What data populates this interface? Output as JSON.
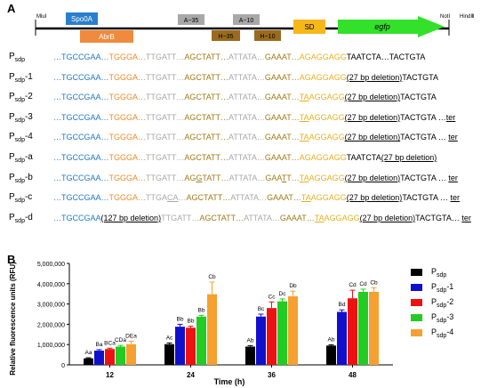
{
  "panel_a_label": "A",
  "panel_b_label": "B",
  "map": {
    "mlu": "MluⅠ",
    "notI": "NotⅠ",
    "hindIII": "HindⅢ",
    "spo0a": "Spo0A",
    "abrb": "AbrB",
    "a35": "A−35",
    "a10": "A−10",
    "h35": "H−35",
    "h10": "H−10",
    "sd": "SD",
    "egfp": "egfp",
    "colors": {
      "spo0a": "#2a7fcc",
      "abrb": "#f08a3c",
      "a_box": "#a8a8a8",
      "h_box": "#9a6b1e",
      "sd": "#f5b71a",
      "egfp": "#33e02a"
    }
  },
  "sequences": [
    {
      "name": "P",
      "sub": "sdp",
      "suffix": "",
      "parts": [
        {
          "t": "…TGCCGAA…",
          "c": "blue"
        },
        {
          "t": "TGGGA…",
          "c": "orange"
        },
        {
          "t": "TTGATT…",
          "c": "gray"
        },
        {
          "t": "AGCTATT…",
          "c": "brown"
        },
        {
          "t": "ATTATA…",
          "c": "gray"
        },
        {
          "t": "GAAAT…",
          "c": "brown"
        },
        {
          "t": "AGAGGAGG",
          "c": "yellow"
        },
        {
          "t": "TAATCTA…TACTGTA",
          "c": "black"
        }
      ]
    },
    {
      "name": "P",
      "sub": "sdp",
      "suffix": "-1",
      "parts": [
        {
          "t": "…TGCCGAA…",
          "c": "blue"
        },
        {
          "t": "TGGGA…",
          "c": "orange"
        },
        {
          "t": "TTGATT…",
          "c": "gray"
        },
        {
          "t": "AGCTATT…",
          "c": "brown"
        },
        {
          "t": "ATTATA…",
          "c": "gray"
        },
        {
          "t": "GAAAT…",
          "c": "brown"
        },
        {
          "t": "AGAGGAGG",
          "c": "yellow"
        },
        {
          "t": "(27 bp deletion)",
          "c": "black",
          "u": true
        },
        {
          "t": "TACTGTA",
          "c": "black"
        }
      ]
    },
    {
      "name": "P",
      "sub": "sdp",
      "suffix": "-2",
      "parts": [
        {
          "t": "…TGCCGAA…",
          "c": "blue"
        },
        {
          "t": "TGGGA…",
          "c": "orange"
        },
        {
          "t": "TTGATT…",
          "c": "gray"
        },
        {
          "t": "AGCTATT…",
          "c": "brown"
        },
        {
          "t": "ATTATA…",
          "c": "gray"
        },
        {
          "t": "GAAAT…",
          "c": "brown"
        },
        {
          "t": "TA",
          "c": "yellow",
          "u": true
        },
        {
          "t": "AGGAGG",
          "c": "yellow"
        },
        {
          "t": "(27 bp deletion)",
          "c": "black",
          "u": true
        },
        {
          "t": "TACTGTA",
          "c": "black"
        }
      ]
    },
    {
      "name": "P",
      "sub": "sdp",
      "suffix": "-3",
      "parts": [
        {
          "t": "…TGCCGAA…",
          "c": "blue"
        },
        {
          "t": "TGGGA…",
          "c": "orange"
        },
        {
          "t": "TTGATT…",
          "c": "gray"
        },
        {
          "t": "AGCTATT…",
          "c": "brown"
        },
        {
          "t": "ATTATA…",
          "c": "gray"
        },
        {
          "t": "GAAAT…",
          "c": "brown"
        },
        {
          "t": "TA",
          "c": "yellow",
          "u": true
        },
        {
          "t": "AGGAGG",
          "c": "yellow"
        },
        {
          "t": "(27 bp deletion)",
          "c": "black",
          "u": true
        },
        {
          "t": "TACTGTA …",
          "c": "black"
        },
        {
          "t": "ter",
          "c": "black",
          "u": true
        }
      ]
    },
    {
      "name": "P",
      "sub": "sdp",
      "suffix": "-4",
      "parts": [
        {
          "t": "…TGCCGAA…",
          "c": "blue"
        },
        {
          "t": "TGGGA…",
          "c": "orange"
        },
        {
          "t": "TTGATT…",
          "c": "gray"
        },
        {
          "t": "AGCTATT…",
          "c": "brown"
        },
        {
          "t": "ATTATA…",
          "c": "gray"
        },
        {
          "t": "GAAAT…",
          "c": "brown"
        },
        {
          "t": "TA",
          "c": "yellow",
          "u": true
        },
        {
          "t": "AGGAGG",
          "c": "yellow"
        },
        {
          "t": "(27 bp deletion)",
          "c": "black",
          "u": true
        },
        {
          "t": "TACTGTA … ",
          "c": "black"
        },
        {
          "t": "ter",
          "c": "black",
          "u": true
        }
      ]
    },
    {
      "name": "P",
      "sub": "sdp",
      "suffix": "-a",
      "parts": [
        {
          "t": "…TGCCGAA…",
          "c": "blue"
        },
        {
          "t": "TGGGA…",
          "c": "orange"
        },
        {
          "t": "TTGATT…",
          "c": "gray"
        },
        {
          "t": "AGCTATT…",
          "c": "brown"
        },
        {
          "t": "ATTATA…",
          "c": "gray"
        },
        {
          "t": "GAAAT…",
          "c": "brown"
        },
        {
          "t": "AGAGGAGG",
          "c": "yellow"
        },
        {
          "t": "TAATCTA",
          "c": "black"
        },
        {
          "t": "(27 bp deletion)",
          "c": "black",
          "u": true
        }
      ]
    },
    {
      "name": "P",
      "sub": "sdp",
      "suffix": "-b",
      "parts": [
        {
          "t": "…TGCCGAA…",
          "c": "blue"
        },
        {
          "t": "TGGGA…",
          "c": "orange"
        },
        {
          "t": "TTGATT…",
          "c": "gray"
        },
        {
          "t": "AG",
          "c": "brown"
        },
        {
          "t": "G",
          "c": "brown",
          "u": true
        },
        {
          "t": "TATT…",
          "c": "brown"
        },
        {
          "t": "ATTATA…",
          "c": "gray"
        },
        {
          "t": "GAA",
          "c": "brown"
        },
        {
          "t": "T",
          "c": "brown",
          "u": true
        },
        {
          "t": "T…",
          "c": "brown"
        },
        {
          "t": "TA",
          "c": "yellow",
          "u": true
        },
        {
          "t": "AGGAGG",
          "c": "yellow"
        },
        {
          "t": "(27 bp deletion)",
          "c": "black",
          "u": true
        },
        {
          "t": "TACTGTA … ",
          "c": "black"
        },
        {
          "t": "ter",
          "c": "black",
          "u": true
        }
      ]
    },
    {
      "name": "P",
      "sub": "sdp",
      "suffix": "-c",
      "parts": [
        {
          "t": "…TGCCGAA…",
          "c": "blue"
        },
        {
          "t": "TGGGA…",
          "c": "orange"
        },
        {
          "t": "TTGA",
          "c": "gray"
        },
        {
          "t": "CA",
          "c": "gray",
          "u": true
        },
        {
          "t": "…",
          "c": "gray"
        },
        {
          "t": "AGCTATT…",
          "c": "brown"
        },
        {
          "t": "ATTATA…",
          "c": "gray"
        },
        {
          "t": "GAAAT…",
          "c": "brown"
        },
        {
          "t": "TA",
          "c": "yellow",
          "u": true
        },
        {
          "t": "AGGAGG",
          "c": "yellow"
        },
        {
          "t": "(27 bp deletion)",
          "c": "black",
          "u": true
        },
        {
          "t": "TACTGTA … ",
          "c": "black"
        },
        {
          "t": "ter",
          "c": "black",
          "u": true
        }
      ]
    },
    {
      "name": "P",
      "sub": "sdp",
      "suffix": "-d",
      "parts": [
        {
          "t": "…TGCCGAA",
          "c": "blue"
        },
        {
          "t": "(127 bp deletion)",
          "c": "black",
          "u": true
        },
        {
          "t": "TTGATT…",
          "c": "gray"
        },
        {
          "t": "AGCTATT…",
          "c": "brown"
        },
        {
          "t": "ATTATA…",
          "c": "gray"
        },
        {
          "t": "GAAAT…",
          "c": "brown"
        },
        {
          "t": "TA",
          "c": "yellow",
          "u": true
        },
        {
          "t": "AGGAGG",
          "c": "yellow"
        },
        {
          "t": "(27 bp deletion)",
          "c": "black",
          "u": true
        },
        {
          "t": "TACTGTA… ",
          "c": "black"
        },
        {
          "t": "ter",
          "c": "black",
          "u": true
        }
      ]
    }
  ],
  "chart_data": {
    "type": "bar",
    "xlabel": "Time (h)",
    "ylabel": "Relative fluorescence units (RFU)",
    "ylim": [
      0,
      5000000
    ],
    "yticks": [
      0,
      1000000,
      2000000,
      3000000,
      4000000,
      5000000
    ],
    "ytick_labels": [
      "0",
      "1,000,000",
      "2,000,000",
      "3,000,000",
      "4,000,000",
      "5,000,000"
    ],
    "categories": [
      "12",
      "24",
      "36",
      "48"
    ],
    "legend_placement": "right",
    "series": [
      {
        "name": "P",
        "sub": "sdp",
        "suffix": "",
        "color": "#000000",
        "values": [
          320000,
          1020000,
          900000,
          950000
        ],
        "errors": [
          30000,
          60000,
          50000,
          40000
        ],
        "labels": [
          "Aa",
          "Ac",
          "Ab",
          "Ab"
        ]
      },
      {
        "name": "P",
        "sub": "sdp",
        "suffix": "-1",
        "color": "#1010cc",
        "values": [
          700000,
          1880000,
          2380000,
          2610000
        ],
        "errors": [
          50000,
          120000,
          120000,
          100000
        ],
        "labels": [
          "Ba",
          "Bb",
          "Bc",
          "Bd"
        ]
      },
      {
        "name": "P",
        "sub": "sdp",
        "suffix": "-2",
        "color": "#ee1111",
        "values": [
          780000,
          1830000,
          2800000,
          3280000
        ],
        "errors": [
          40000,
          80000,
          300000,
          400000
        ],
        "labels": [
          "BCa",
          "Bb",
          "Cc",
          "Cd"
        ]
      },
      {
        "name": "P",
        "sub": "sdp",
        "suffix": "-3",
        "color": "#22cc22",
        "values": [
          900000,
          2380000,
          3130000,
          3600000
        ],
        "errors": [
          60000,
          60000,
          120000,
          130000
        ],
        "labels": [
          "CDa",
          "Bb",
          "Dc",
          "Cd"
        ]
      },
      {
        "name": "P",
        "sub": "sdp",
        "suffix": "-4",
        "color": "#f5a030",
        "values": [
          1020000,
          3480000,
          3380000,
          3600000
        ],
        "errors": [
          150000,
          600000,
          250000,
          200000
        ],
        "labels": [
          "DEa",
          "Cb",
          "Db",
          "Cb"
        ]
      }
    ]
  }
}
